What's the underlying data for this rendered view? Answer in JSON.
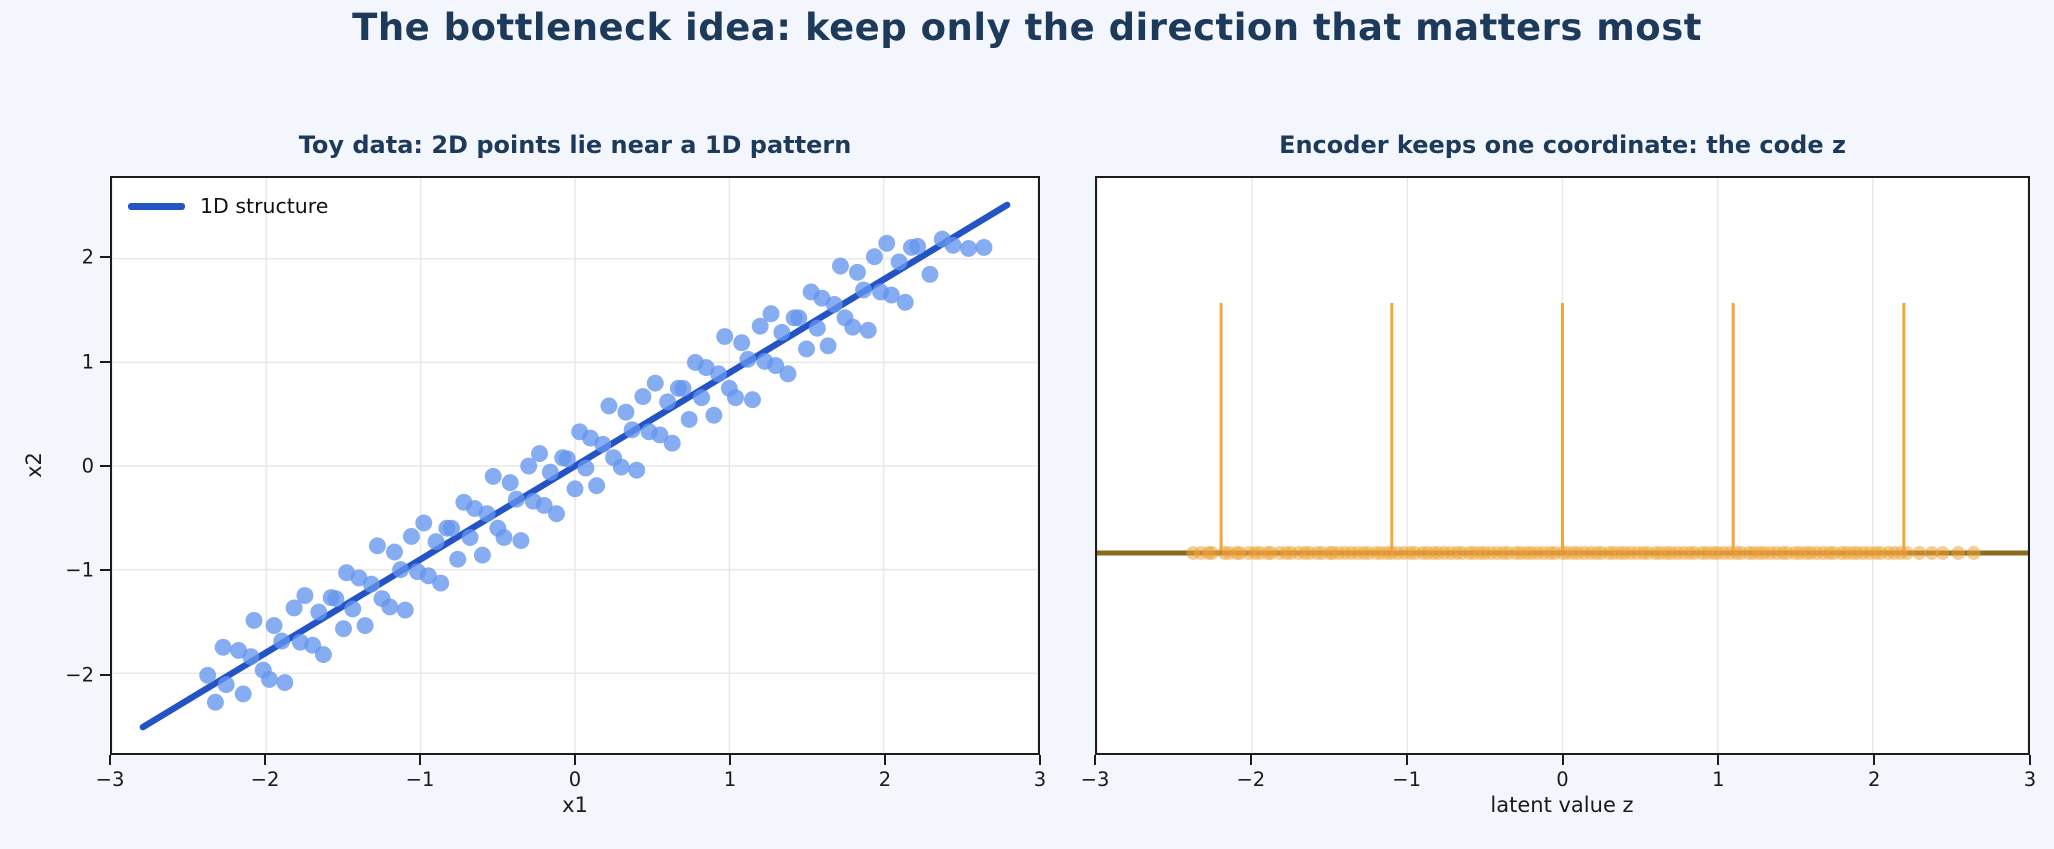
{
  "figure": {
    "title": "The bottleneck idea: keep only the direction that matters most",
    "background_color": "#f3f6fc",
    "title_color": "#1e3a5a"
  },
  "chart_data": [
    {
      "type": "scatter",
      "title": "Toy data: 2D points lie near a 1D pattern",
      "xlabel": "x1",
      "ylabel": "x2",
      "xlim": [
        -3,
        3
      ],
      "ylim": [
        -2.77,
        2.78
      ],
      "xticks": [
        -3,
        -2,
        -1,
        0,
        1,
        2,
        3
      ],
      "yticks": [
        -2,
        -1,
        0,
        1,
        2
      ],
      "grid": "both",
      "grid_color": "#e8e8e8",
      "legend": {
        "label": "1D structure",
        "position": "upper left"
      },
      "line": {
        "name": "1D structure",
        "x": [
          -2.8,
          2.8
        ],
        "y": [
          -2.52,
          2.52
        ],
        "color": "#2453c6",
        "width": 6.5
      },
      "point_color": "#6495ed",
      "point_alpha": 0.78,
      "points": [
        [
          -2.38,
          -2.02
        ],
        [
          -2.33,
          -2.28
        ],
        [
          -2.28,
          -1.75
        ],
        [
          -2.26,
          -2.11
        ],
        [
          -2.18,
          -1.78
        ],
        [
          -2.15,
          -2.2
        ],
        [
          -2.1,
          -1.84
        ],
        [
          -2.08,
          -1.49
        ],
        [
          -2.02,
          -1.97
        ],
        [
          -1.98,
          -2.06
        ],
        [
          -1.95,
          -1.54
        ],
        [
          -1.9,
          -1.69
        ],
        [
          -1.88,
          -2.09
        ],
        [
          -1.82,
          -1.37
        ],
        [
          -1.78,
          -1.7
        ],
        [
          -1.75,
          -1.25
        ],
        [
          -1.7,
          -1.73
        ],
        [
          -1.66,
          -1.41
        ],
        [
          -1.63,
          -1.82
        ],
        [
          -1.58,
          -1.27
        ],
        [
          -1.55,
          -1.28
        ],
        [
          -1.5,
          -1.57
        ],
        [
          -1.48,
          -1.03
        ],
        [
          -1.44,
          -1.38
        ],
        [
          -1.4,
          -1.08
        ],
        [
          -1.36,
          -1.54
        ],
        [
          -1.32,
          -1.14
        ],
        [
          -1.28,
          -0.77
        ],
        [
          -1.25,
          -1.28
        ],
        [
          -1.2,
          -1.36
        ],
        [
          -1.17,
          -0.83
        ],
        [
          -1.13,
          -1.0
        ],
        [
          -1.1,
          -1.39
        ],
        [
          -1.06,
          -0.68
        ],
        [
          -1.02,
          -1.02
        ],
        [
          -0.98,
          -0.55
        ],
        [
          -0.95,
          -1.06
        ],
        [
          -0.9,
          -0.73
        ],
        [
          -0.87,
          -1.13
        ],
        [
          -0.83,
          -0.6
        ],
        [
          -0.8,
          -0.6
        ],
        [
          -0.76,
          -0.9
        ],
        [
          -0.72,
          -0.35
        ],
        [
          -0.68,
          -0.69
        ],
        [
          -0.65,
          -0.41
        ],
        [
          -0.6,
          -0.86
        ],
        [
          -0.57,
          -0.46
        ],
        [
          -0.53,
          -0.1
        ],
        [
          -0.5,
          -0.6
        ],
        [
          -0.46,
          -0.69
        ],
        [
          -0.42,
          -0.16
        ],
        [
          -0.38,
          -0.32
        ],
        [
          -0.35,
          -0.72
        ],
        [
          -0.3,
          0.0
        ],
        [
          -0.27,
          -0.34
        ],
        [
          -0.23,
          0.12
        ],
        [
          -0.2,
          -0.38
        ],
        [
          -0.16,
          -0.06
        ],
        [
          -0.12,
          -0.46
        ],
        [
          -0.08,
          0.08
        ],
        [
          -0.05,
          0.07
        ],
        [
          0.0,
          -0.22
        ],
        [
          0.03,
          0.33
        ],
        [
          0.07,
          -0.02
        ],
        [
          0.1,
          0.27
        ],
        [
          0.14,
          -0.19
        ],
        [
          0.18,
          0.21
        ],
        [
          0.22,
          0.58
        ],
        [
          0.25,
          0.08
        ],
        [
          0.3,
          -0.01
        ],
        [
          0.33,
          0.52
        ],
        [
          0.37,
          0.35
        ],
        [
          0.4,
          -0.04
        ],
        [
          0.44,
          0.67
        ],
        [
          0.48,
          0.33
        ],
        [
          0.52,
          0.8
        ],
        [
          0.55,
          0.3
        ],
        [
          0.6,
          0.62
        ],
        [
          0.63,
          0.22
        ],
        [
          0.67,
          0.75
        ],
        [
          0.7,
          0.75
        ],
        [
          0.74,
          0.45
        ],
        [
          0.78,
          1.0
        ],
        [
          0.82,
          0.66
        ],
        [
          0.85,
          0.95
        ],
        [
          0.9,
          0.49
        ],
        [
          0.93,
          0.89
        ],
        [
          0.97,
          1.25
        ],
        [
          1.0,
          0.75
        ],
        [
          1.04,
          0.66
        ],
        [
          1.08,
          1.19
        ],
        [
          1.12,
          1.03
        ],
        [
          1.15,
          0.64
        ],
        [
          1.2,
          1.35
        ],
        [
          1.23,
          1.01
        ],
        [
          1.27,
          1.47
        ],
        [
          1.3,
          0.97
        ],
        [
          1.34,
          1.29
        ],
        [
          1.38,
          0.89
        ],
        [
          1.42,
          1.43
        ],
        [
          1.45,
          1.43
        ],
        [
          1.5,
          1.13
        ],
        [
          1.53,
          1.68
        ],
        [
          1.57,
          1.33
        ],
        [
          1.6,
          1.62
        ],
        [
          1.64,
          1.16
        ],
        [
          1.68,
          1.56
        ],
        [
          1.72,
          1.93
        ],
        [
          1.75,
          1.43
        ],
        [
          1.8,
          1.34
        ],
        [
          1.83,
          1.87
        ],
        [
          1.87,
          1.7
        ],
        [
          1.9,
          1.31
        ],
        [
          1.94,
          2.02
        ],
        [
          1.98,
          1.68
        ],
        [
          2.02,
          2.15
        ],
        [
          2.05,
          1.65
        ],
        [
          2.1,
          1.97
        ],
        [
          2.14,
          1.58
        ],
        [
          2.18,
          2.11
        ],
        [
          2.22,
          2.12
        ],
        [
          2.3,
          1.85
        ],
        [
          2.38,
          2.19
        ],
        [
          2.45,
          2.13
        ],
        [
          2.55,
          2.1
        ],
        [
          2.65,
          2.11
        ]
      ]
    },
    {
      "type": "scatter",
      "title": "Encoder keeps one coordinate: the code z",
      "xlabel": "latent value z",
      "ylabel": "",
      "xlim": [
        -3,
        3
      ],
      "ylim": [
        -0.8,
        1.5
      ],
      "xticks": [
        -3,
        -2,
        -1,
        0,
        1,
        2,
        3
      ],
      "yticks": [],
      "grid": "vertical",
      "grid_color": "#e8e8e8",
      "baseline": {
        "y": 0,
        "color": "#8a6a1e",
        "width": 5
      },
      "spikes": {
        "z": [
          -2.2,
          -1.1,
          0,
          1.1,
          2.2
        ],
        "height": 1.0,
        "color": "#f5a63b",
        "width": 3
      },
      "rug_color": "#f0a43c",
      "rug_alpha": 0.55,
      "z_values": [
        -2.38,
        -2.33,
        -2.28,
        -2.26,
        -2.18,
        -2.15,
        -2.1,
        -2.08,
        -2.02,
        -1.98,
        -1.95,
        -1.9,
        -1.88,
        -1.82,
        -1.78,
        -1.75,
        -1.7,
        -1.66,
        -1.63,
        -1.58,
        -1.55,
        -1.5,
        -1.48,
        -1.44,
        -1.4,
        -1.36,
        -1.32,
        -1.28,
        -1.25,
        -1.2,
        -1.17,
        -1.13,
        -1.1,
        -1.06,
        -1.02,
        -0.98,
        -0.95,
        -0.9,
        -0.87,
        -0.83,
        -0.8,
        -0.76,
        -0.72,
        -0.68,
        -0.65,
        -0.6,
        -0.57,
        -0.53,
        -0.5,
        -0.46,
        -0.42,
        -0.38,
        -0.35,
        -0.3,
        -0.27,
        -0.23,
        -0.2,
        -0.16,
        -0.12,
        -0.08,
        -0.05,
        0.0,
        0.03,
        0.07,
        0.1,
        0.14,
        0.18,
        0.22,
        0.25,
        0.3,
        0.33,
        0.37,
        0.4,
        0.44,
        0.48,
        0.52,
        0.55,
        0.6,
        0.63,
        0.67,
        0.7,
        0.74,
        0.78,
        0.82,
        0.85,
        0.9,
        0.93,
        0.97,
        1.0,
        1.04,
        1.08,
        1.12,
        1.15,
        1.2,
        1.23,
        1.27,
        1.3,
        1.34,
        1.38,
        1.42,
        1.45,
        1.5,
        1.53,
        1.57,
        1.6,
        1.64,
        1.68,
        1.72,
        1.75,
        1.8,
        1.83,
        1.87,
        1.9,
        1.94,
        1.98,
        2.02,
        2.05,
        2.1,
        2.14,
        2.18,
        2.22,
        2.3,
        2.38,
        2.45,
        2.55,
        2.65
      ]
    }
  ]
}
